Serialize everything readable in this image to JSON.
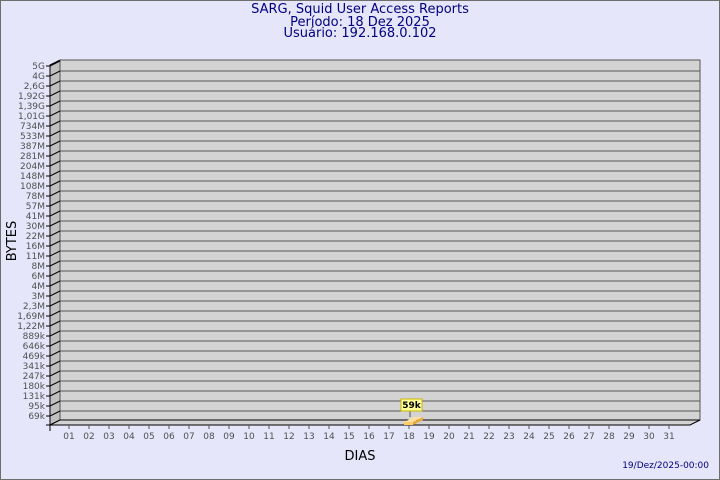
{
  "header": {
    "title": "SARG, Squid User Access Reports",
    "period": "Período: 18 Dez 2025",
    "user": "Usuário: 192.168.0.102"
  },
  "footer": {
    "generated": "19/Dez/2025-00:00"
  },
  "chart_data": {
    "type": "bar",
    "title": "SARG, Squid User Access Reports",
    "xlabel": "DIAS",
    "ylabel": "BYTES",
    "y_scale": "log",
    "grid": true,
    "categories": [
      "01",
      "02",
      "03",
      "04",
      "05",
      "06",
      "07",
      "08",
      "09",
      "10",
      "11",
      "12",
      "13",
      "14",
      "15",
      "16",
      "17",
      "18",
      "19",
      "20",
      "21",
      "22",
      "23",
      "24",
      "25",
      "26",
      "27",
      "28",
      "29",
      "30",
      "31"
    ],
    "y_tick_labels": [
      "5G",
      "4G",
      "2,6G",
      "1,92G",
      "1,39G",
      "1,01G",
      "734M",
      "533M",
      "387M",
      "281M",
      "204M",
      "148M",
      "108M",
      "78M",
      "57M",
      "41M",
      "30M",
      "22M",
      "16M",
      "11M",
      "8M",
      "6M",
      "4M",
      "3M",
      "2,3M",
      "1,69M",
      "1,22M",
      "889k",
      "646k",
      "469k",
      "341k",
      "247k",
      "180k",
      "131k",
      "95k",
      "69k"
    ],
    "bars": [
      {
        "day": "18",
        "value": 59000,
        "label": "59k"
      }
    ],
    "colors": {
      "wall": "#d3d3d3",
      "side": "#c0c0c0",
      "bar": "#ffcc66",
      "bar_side": "#e8a840",
      "label_bg": "#ffff99",
      "text": "#000080"
    }
  }
}
